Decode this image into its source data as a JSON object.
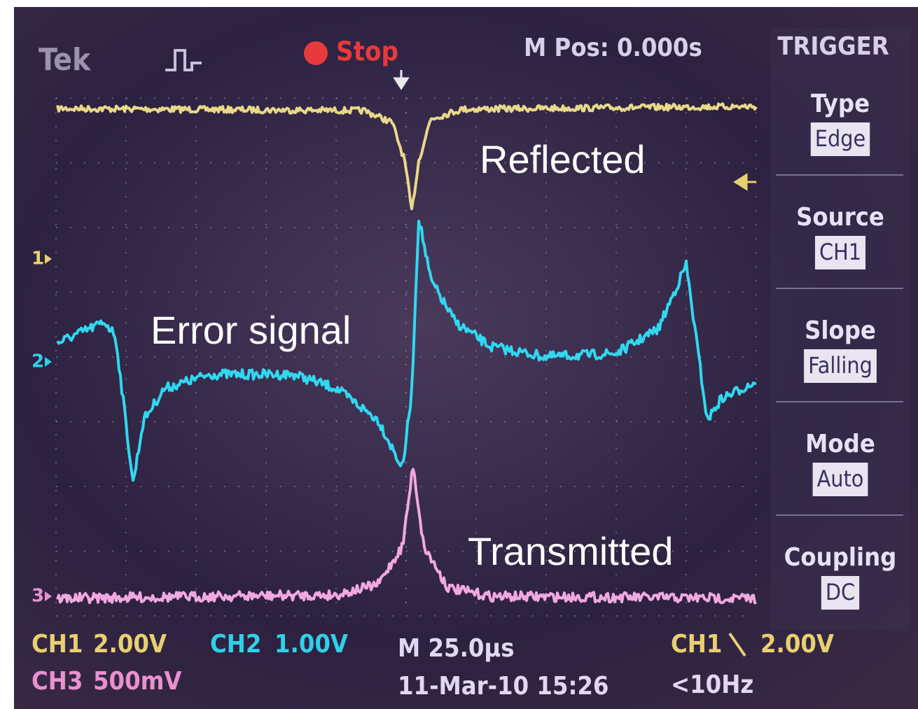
{
  "header": {
    "brand": "Tek",
    "status": "Stop",
    "position": "M Pos: 0.000s"
  },
  "trigger_menu": {
    "title": "TRIGGER",
    "items": [
      {
        "label": "Type",
        "value": "Edge"
      },
      {
        "label": "Source",
        "value": "CH1"
      },
      {
        "label": "Slope",
        "value": "Falling"
      },
      {
        "label": "Mode",
        "value": "Auto"
      },
      {
        "label": "Coupling",
        "value": "DC"
      }
    ]
  },
  "channel_markers": [
    "1",
    "2",
    "3"
  ],
  "annotations": {
    "reflected": "Reflected",
    "error": "Error signal",
    "transmitted": "Transmitted"
  },
  "footer": {
    "ch1": "CH1",
    "ch1_scale": "2.00V",
    "ch2": "CH2",
    "ch2_scale": "1.00V",
    "ch3": "CH3",
    "ch3_scale": "500mV",
    "timebase": "M 25.0µs",
    "date": "11-Mar-10 15:26",
    "trigger_source": "CH1",
    "trigger_level": "2.00V",
    "trigger_freq": "<10Hz"
  }
}
